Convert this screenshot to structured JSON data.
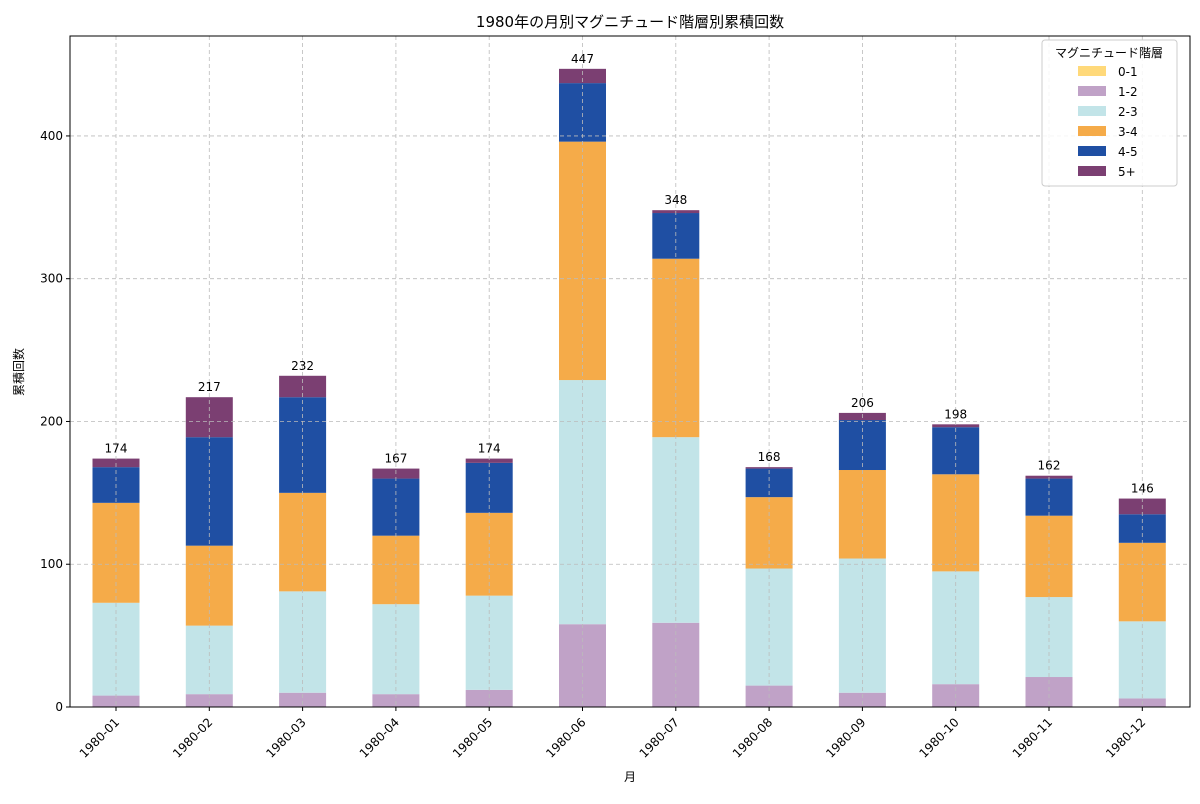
{
  "chart_data": {
    "type": "bar",
    "stacked": true,
    "title": "1980年の月別マグニチュード階層別累積回数",
    "xlabel": "月",
    "ylabel": "累積回数",
    "ylim": [
      0,
      470
    ],
    "yticks": [
      0,
      100,
      200,
      300,
      400
    ],
    "grid": true,
    "legend": {
      "title": "マグニチュード階層",
      "placement": "top-right"
    },
    "categories": [
      "1980-01",
      "1980-02",
      "1980-03",
      "1980-04",
      "1980-05",
      "1980-06",
      "1980-07",
      "1980-08",
      "1980-09",
      "1980-10",
      "1980-11",
      "1980-12"
    ],
    "series": [
      {
        "name": "0-1",
        "color": "#FFD97A",
        "values": [
          0,
          0,
          0,
          0,
          0,
          0,
          0,
          0,
          0,
          0,
          0,
          0
        ]
      },
      {
        "name": "1-2",
        "color": "#C0A2C7",
        "values": [
          8,
          9,
          10,
          9,
          12,
          58,
          59,
          15,
          10,
          16,
          21,
          6
        ]
      },
      {
        "name": "2-3",
        "color": "#C2E4E8",
        "values": [
          65,
          48,
          71,
          63,
          66,
          171,
          130,
          82,
          94,
          79,
          56,
          54
        ]
      },
      {
        "name": "3-4",
        "color": "#F5AB49",
        "values": [
          70,
          56,
          69,
          48,
          58,
          167,
          125,
          50,
          62,
          68,
          57,
          55
        ]
      },
      {
        "name": "4-5",
        "color": "#1F4FA3",
        "values": [
          25,
          76,
          67,
          40,
          35,
          41,
          32,
          20,
          35,
          33,
          26,
          20
        ]
      },
      {
        "name": "5+",
        "color": "#7B3F72",
        "values": [
          6,
          28,
          15,
          7,
          3,
          10,
          2,
          1,
          5,
          2,
          2,
          11
        ]
      }
    ],
    "totals": [
      174,
      217,
      232,
      167,
      174,
      447,
      348,
      168,
      206,
      198,
      162,
      146
    ]
  }
}
